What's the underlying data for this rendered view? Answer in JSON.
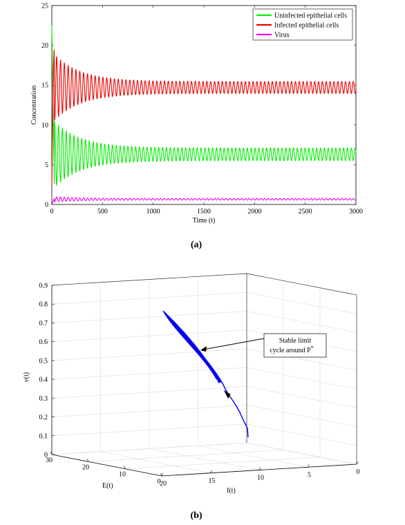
{
  "figure_a": {
    "caption": "(a)",
    "ylabel": "Concentration",
    "xlabel": "Time (t)",
    "xticks": [
      "0",
      "500",
      "1000",
      "1500",
      "2000",
      "2500",
      "3000"
    ],
    "yticks": [
      "0",
      "5",
      "10",
      "15",
      "20",
      "25"
    ],
    "legend": [
      "Uninfected epithelial cells",
      "Infected epithelial cells",
      "Virus"
    ]
  },
  "figure_b": {
    "caption": "(b)",
    "zlabel": "v(t)",
    "elabel": "E(t)",
    "ilabel": "I(t)",
    "zticks": [
      "0",
      "0.1",
      "0.2",
      "0.3",
      "0.4",
      "0.5",
      "0.6",
      "0.7",
      "0.8",
      "0.9"
    ],
    "eticks": [
      "30",
      "20",
      "10",
      "0"
    ],
    "iticks": [
      "20",
      "15",
      "10",
      "5",
      "0"
    ],
    "annotation_line1": "Stable limit",
    "annotation_line2": "cycle around P",
    "annotation_sup": "*"
  },
  "chart_data": [
    {
      "type": "line",
      "xlabel": "Time (t)",
      "ylabel": "Concentration",
      "xlim": [
        0,
        3000
      ],
      "ylim": [
        0,
        25
      ],
      "legend_position": "top-right",
      "series": [
        {
          "name": "Uninfected epithelial cells",
          "color": "#00ee00",
          "start": 22.5,
          "mean": 6.3,
          "final_amplitude": 0.8,
          "initial_amplitude": 4.5
        },
        {
          "name": "Infected epithelial cells",
          "color": "#ee0000",
          "start": 2.5,
          "mean": 14.7,
          "final_amplitude": 0.75,
          "initial_amplitude": 4.5
        },
        {
          "name": "Virus",
          "color": "#ee00ee",
          "start": 0.0,
          "mean": 0.65,
          "final_amplitude": 0.1,
          "initial_amplitude": 0.35
        }
      ],
      "oscillation_period": 38
    },
    {
      "type": "line3d",
      "xlabel": "E(t)",
      "ylabel": "I(t)",
      "zlabel": "v(t)",
      "elim": [
        0,
        30
      ],
      "ilim": [
        0,
        20
      ],
      "zlim": [
        0,
        0.9
      ],
      "color": "#0000ee",
      "trajectory_start": {
        "E": 3,
        "I": 10,
        "v": 0.08
      },
      "limit_cycle": {
        "E_range": [
          5,
          10
        ],
        "I_range": [
          12,
          18
        ],
        "v_range": [
          0.38,
          0.77
        ]
      }
    }
  ]
}
